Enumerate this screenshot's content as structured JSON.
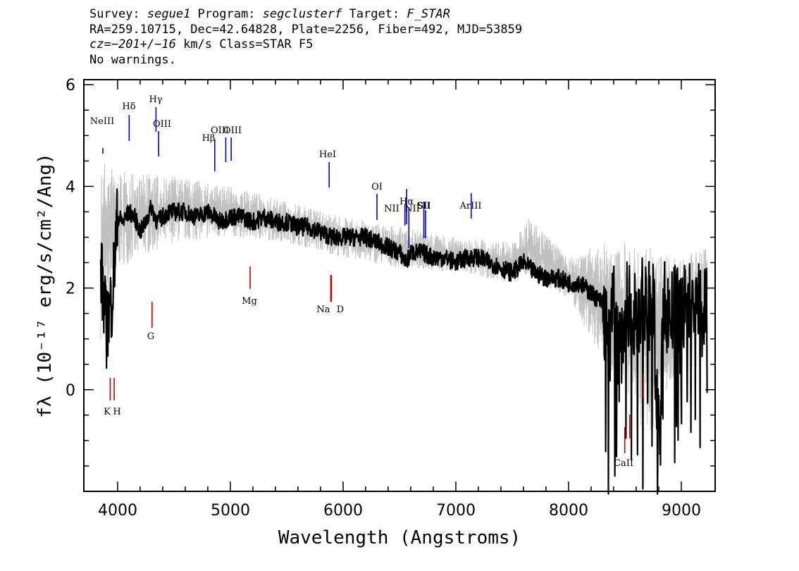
{
  "header": {
    "line1": {
      "survey_label": "Survey: ",
      "survey": "segue1",
      "program_label": " Program: ",
      "program": "segclusterf",
      "target_label": " Target: ",
      "target": "F_STAR"
    },
    "line2": "RA=259.10715, Dec=42.64828, Plate=2256, Fiber=492, MJD=53859",
    "line3": {
      "cz_label": "cz",
      "cz_value": "=−201+/−16",
      "cz_rest": " km/s Class=STAR F5"
    },
    "line4": "No warnings."
  },
  "chart_data": {
    "type": "line",
    "xlabel": "Wavelength (Angstroms)",
    "ylabel": "fλ (10⁻¹⁷ erg/s/cm²/Ang)",
    "xlim": [
      3700,
      9300
    ],
    "ylim": [
      -2,
      6.1
    ],
    "x_ticks": [
      4000,
      5000,
      6000,
      7000,
      8000,
      9000
    ],
    "y_ticks": [
      0,
      2,
      4,
      6
    ],
    "colors": {
      "flux": "#000000",
      "error": "#c0c0c0",
      "emission": "#0000cc",
      "absorption": "#cc0000"
    },
    "series": [
      {
        "name": "",
        "style": "black",
        "x": [
          3850,
          3900,
          3950,
          4000,
          4050,
          4100,
          4150,
          4200,
          4250,
          4300,
          4350,
          4400,
          4450,
          4500,
          4600,
          4700,
          4800,
          4860,
          4900,
          5000,
          5100,
          5200,
          5300,
          5400,
          5500,
          5600,
          5700,
          5800,
          5900,
          6000,
          6100,
          6200,
          6300,
          6400,
          6500,
          6563,
          6600,
          6700,
          6800,
          6900,
          7000,
          7100,
          7200,
          7300,
          7400,
          7500,
          7600,
          7700,
          7800,
          7900,
          8000,
          8100,
          8200,
          8300,
          8350,
          8400,
          8450,
          8500,
          8550,
          8600,
          8650,
          8700,
          8750,
          8800,
          8850,
          8900,
          8950,
          9000,
          9050,
          9100,
          9150,
          9200,
          9230
        ],
        "y": [
          2.4,
          1.2,
          1.8,
          3.4,
          3.3,
          3.5,
          3.4,
          3.1,
          3.3,
          3.6,
          3.3,
          3.4,
          3.5,
          3.5,
          3.5,
          3.4,
          3.5,
          3.4,
          3.3,
          3.4,
          3.4,
          3.3,
          3.4,
          3.3,
          3.3,
          3.2,
          3.2,
          3.1,
          3.0,
          3.0,
          3.0,
          3.0,
          2.9,
          2.8,
          2.7,
          2.5,
          2.7,
          2.7,
          2.6,
          2.6,
          2.5,
          2.6,
          2.6,
          2.5,
          2.4,
          2.3,
          2.5,
          2.3,
          2.2,
          2.2,
          2.1,
          2.1,
          1.9,
          1.7,
          0.9,
          1.6,
          0.6,
          1.6,
          1.7,
          1.4,
          1.7,
          1.6,
          1.8,
          -1.0,
          1.7,
          1.4,
          1.6,
          1.5,
          1.7,
          1.6,
          1.7,
          1.8,
          1.6
        ]
      },
      {
        "name": "",
        "style": "gray",
        "x": [
          3850,
          4000,
          4500,
          5000,
          5500,
          6000,
          6500,
          7000,
          7500,
          7650,
          8000,
          8300,
          8500,
          8700,
          9000,
          9230
        ],
        "y_low": [
          1.0,
          2.4,
          2.9,
          3.0,
          2.9,
          2.6,
          2.4,
          2.3,
          2.1,
          2.2,
          1.8,
          0.6,
          0.0,
          -1.0,
          0.6,
          1.2
        ],
        "y_high": [
          4.6,
          4.3,
          4.2,
          4.0,
          3.7,
          3.4,
          3.2,
          3.0,
          2.9,
          3.4,
          2.6,
          2.9,
          3.0,
          2.8,
          2.6,
          2.8
        ]
      }
    ],
    "annotations": {
      "emission": [
        {
          "label": "NeIII",
          "wavelength": 3869
        },
        {
          "label": "Hδ",
          "wavelength": 4102
        },
        {
          "label": "Hγ",
          "wavelength": 4340
        },
        {
          "label": "OIII",
          "wavelength": 4363
        },
        {
          "label": "Hβ",
          "wavelength": 4861
        },
        {
          "label": "OIII",
          "wavelength": 4959
        },
        {
          "label": "OIII",
          "wavelength": 5007
        },
        {
          "label": "HeI",
          "wavelength": 5876
        },
        {
          "label": "OI",
          "wavelength": 6300
        },
        {
          "label": "NII",
          "wavelength": 6548
        },
        {
          "label": "Hα",
          "wavelength": 6563
        },
        {
          "label": "NII",
          "wavelength": 6583
        },
        {
          "label": "SII",
          "wavelength": 6716
        },
        {
          "label": "SII",
          "wavelength": 6731
        },
        {
          "label": "ArIII",
          "wavelength": 7136
        }
      ],
      "absorption": [
        {
          "label": "K",
          "wavelength": 3934
        },
        {
          "label": "H",
          "wavelength": 3969
        },
        {
          "label": "G",
          "wavelength": 4305
        },
        {
          "label": "Mg",
          "wavelength": 5175
        },
        {
          "label": "Na",
          "wavelength": 5890
        },
        {
          "label": "D",
          "wavelength": 5896
        },
        {
          "label": "CaII",
          "wavelength": 8498
        },
        {
          "label": "CaII",
          "wavelength": 8542
        },
        {
          "label": "CaII",
          "wavelength": 8662
        }
      ]
    }
  }
}
